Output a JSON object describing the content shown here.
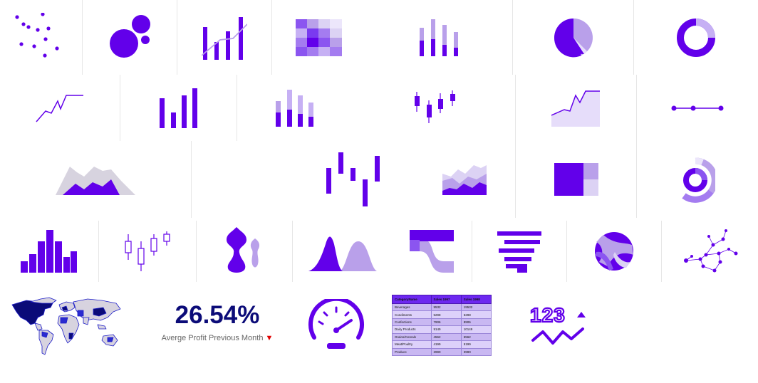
{
  "colors": {
    "primary": "#6200ea",
    "light": "#b9a0ea",
    "lighter": "#dcd2f4",
    "pale": "#ece6fb",
    "grey": "#d7d3df",
    "kpi_value": "#0b0b78",
    "down_arrow": "#e00000"
  },
  "gallery": {
    "rows": [
      {
        "items": [
          {
            "name": "scatter-chart-icon"
          },
          {
            "name": "bubble-chart-icon"
          },
          {
            "name": "bar-line-combo-icon"
          },
          {
            "name": "heatmap-icon"
          },
          {
            "name": "stacked-column-icon"
          },
          {
            "name": "pie-chart-icon"
          },
          {
            "name": "donut-chart-icon"
          }
        ]
      },
      {
        "items": [
          {
            "name": "line-chart-icon"
          },
          {
            "name": "column-chart-icon"
          },
          {
            "name": "stacked-column-light-icon"
          },
          {
            "name": "candlestick-icon"
          },
          {
            "name": "area-chart-icon"
          },
          {
            "name": "dot-line-icon"
          }
        ]
      },
      {
        "items": [
          {
            "name": "mountain-area-icon"
          },
          {
            "name": "waterfall-icon"
          },
          {
            "name": "stacked-area-icon"
          },
          {
            "name": "treemap-icon"
          },
          {
            "name": "sunburst-icon"
          }
        ]
      },
      {
        "items": [
          {
            "name": "histogram-icon"
          },
          {
            "name": "box-plot-icon"
          },
          {
            "name": "violin-plot-icon"
          },
          {
            "name": "density-plot-icon"
          },
          {
            "name": "sankey-icon"
          },
          {
            "name": "gantt-chart-icon"
          },
          {
            "name": "chord-diagram-icon"
          },
          {
            "name": "network-graph-icon"
          }
        ]
      }
    ]
  },
  "kpi": {
    "value": "26.54%",
    "caption": "Averge Profit Previous Month",
    "trend": "down"
  },
  "table": {
    "headers": [
      "CategoryName",
      "Sales 1997",
      "Sales 1998"
    ],
    "rows": [
      [
        "Beverages",
        "9532",
        "19532"
      ],
      [
        "Condiments",
        "5298",
        "5298"
      ],
      [
        "Confections",
        "7906",
        "8906"
      ],
      [
        "Dairy Products",
        "9149",
        "10149"
      ],
      [
        "Grains/Cereals",
        "4562",
        "5562"
      ],
      [
        "Meat/Poultry",
        "4199",
        "5199"
      ],
      [
        "Produce",
        "2990",
        "3990"
      ]
    ]
  },
  "number_card": {
    "value": "123"
  }
}
